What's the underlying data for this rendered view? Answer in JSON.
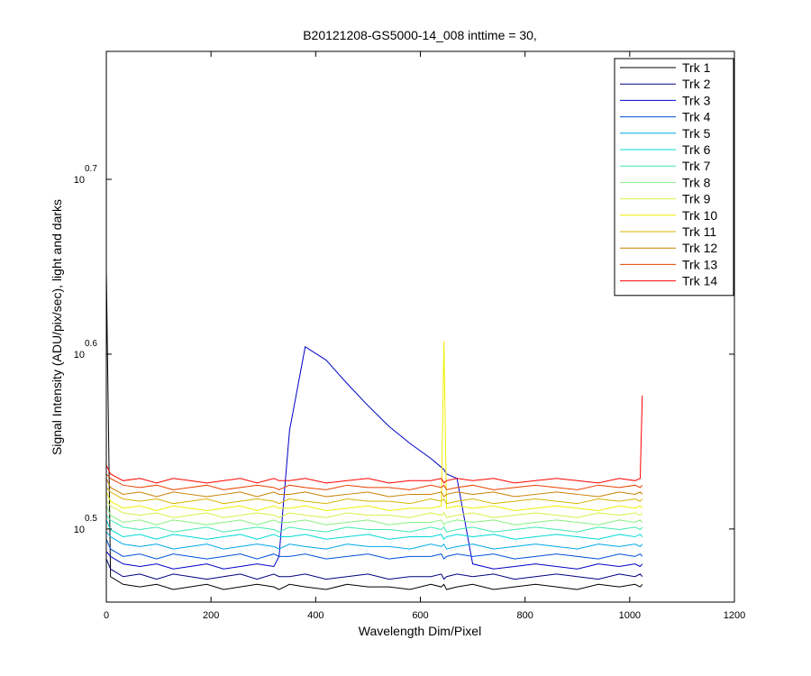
{
  "chart_data": {
    "type": "line",
    "title": "B20121208-GS5000-14_008 inttime = 30,",
    "x_label": "Wavelength Dim/Pixel",
    "y_label": "Signal Intensity (ADU/pix/sec), light and darks",
    "log_y": true,
    "legend_position": "northeast",
    "xlim": [
      0,
      1200
    ],
    "xticks": [
      0,
      200,
      400,
      600,
      800,
      1000,
      1200
    ],
    "ylim": [
      2.872,
      5.932
    ],
    "yticks": [
      {
        "value": 3.16228,
        "label": "10",
        "exponent": "0.5"
      },
      {
        "value": 3.98107,
        "label": "10",
        "exponent": "0.6"
      },
      {
        "value": 5.01187,
        "label": "10",
        "exponent": "0.7"
      }
    ],
    "x": [
      0,
      8,
      32,
      64,
      96,
      128,
      160,
      192,
      224,
      256,
      288,
      320,
      330,
      350,
      380,
      420,
      460,
      500,
      540,
      580,
      620,
      640,
      645,
      650,
      670,
      700,
      740,
      780,
      820,
      860,
      900,
      940,
      980,
      1010,
      1020,
      1024
    ],
    "series": [
      {
        "name": "Trk 1",
        "color": "#000000",
        "values": [
          4.45,
          2.97,
          2.94,
          2.93,
          2.94,
          2.92,
          2.93,
          2.94,
          2.92,
          2.93,
          2.94,
          2.93,
          2.92,
          2.94,
          2.93,
          2.92,
          2.94,
          2.93,
          2.93,
          2.92,
          2.94,
          2.93,
          2.94,
          2.92,
          2.93,
          2.94,
          2.92,
          2.93,
          2.94,
          2.93,
          2.92,
          2.94,
          2.93,
          2.94,
          2.93,
          2.94
        ]
      },
      {
        "name": "Trk 2",
        "color": "#00007f",
        "values": [
          3.04,
          3.0,
          2.97,
          2.98,
          2.96,
          2.98,
          2.97,
          2.96,
          2.97,
          2.98,
          2.96,
          2.98,
          2.97,
          2.97,
          2.98,
          2.96,
          2.97,
          2.98,
          2.96,
          2.97,
          2.97,
          2.98,
          2.96,
          2.97,
          2.98,
          2.97,
          2.98,
          2.96,
          2.97,
          2.98,
          2.97,
          2.96,
          2.98,
          2.97,
          2.98,
          2.97
        ]
      },
      {
        "name": "Trk 3",
        "color": "#0000c8",
        "values": [
          3.07,
          3.05,
          3.02,
          3.01,
          3.02,
          3.0,
          3.01,
          3.02,
          3.0,
          3.01,
          3.02,
          3.01,
          3.05,
          3.6,
          4.02,
          3.95,
          3.83,
          3.72,
          3.62,
          3.54,
          3.47,
          3.43,
          3.42,
          3.4,
          3.38,
          3.02,
          3.0,
          3.01,
          3.02,
          3.01,
          3.0,
          3.02,
          3.01,
          3.02,
          3.01,
          3.02
        ]
      },
      {
        "name": "Trk 4",
        "color": "#0050dc",
        "values": [
          3.12,
          3.08,
          3.05,
          3.06,
          3.04,
          3.06,
          3.05,
          3.04,
          3.05,
          3.06,
          3.04,
          3.06,
          3.05,
          3.05,
          3.06,
          3.04,
          3.05,
          3.06,
          3.04,
          3.05,
          3.05,
          3.06,
          3.04,
          3.05,
          3.06,
          3.05,
          3.06,
          3.04,
          3.05,
          3.06,
          3.05,
          3.04,
          3.06,
          3.05,
          3.06,
          3.05
        ]
      },
      {
        "name": "Trk 5",
        "color": "#00a8e8",
        "values": [
          3.15,
          3.13,
          3.1,
          3.09,
          3.1,
          3.08,
          3.09,
          3.1,
          3.08,
          3.09,
          3.1,
          3.09,
          3.08,
          3.1,
          3.09,
          3.08,
          3.1,
          3.09,
          3.09,
          3.08,
          3.1,
          3.09,
          3.1,
          3.08,
          3.09,
          3.1,
          3.08,
          3.09,
          3.1,
          3.09,
          3.08,
          3.1,
          3.09,
          3.1,
          3.09,
          3.1
        ]
      },
      {
        "name": "Trk 6",
        "color": "#00d8d8",
        "values": [
          3.2,
          3.16,
          3.13,
          3.14,
          3.12,
          3.14,
          3.13,
          3.12,
          3.13,
          3.14,
          3.12,
          3.14,
          3.13,
          3.13,
          3.14,
          3.12,
          3.13,
          3.14,
          3.12,
          3.13,
          3.13,
          3.14,
          3.12,
          3.13,
          3.14,
          3.13,
          3.14,
          3.12,
          3.13,
          3.14,
          3.13,
          3.12,
          3.14,
          3.13,
          3.14,
          3.13
        ]
      },
      {
        "name": "Trk 7",
        "color": "#40e8b0",
        "values": [
          3.22,
          3.2,
          3.17,
          3.16,
          3.17,
          3.15,
          3.16,
          3.17,
          3.15,
          3.16,
          3.17,
          3.16,
          3.15,
          3.17,
          3.16,
          3.15,
          3.17,
          3.16,
          3.16,
          3.15,
          3.17,
          3.16,
          3.17,
          3.15,
          3.16,
          3.17,
          3.15,
          3.16,
          3.17,
          3.16,
          3.15,
          3.17,
          3.16,
          3.17,
          3.16,
          3.17
        ]
      },
      {
        "name": "Trk 8",
        "color": "#88f080",
        "values": [
          3.26,
          3.22,
          3.19,
          3.2,
          3.18,
          3.2,
          3.19,
          3.18,
          3.19,
          3.2,
          3.18,
          3.2,
          3.19,
          3.19,
          3.2,
          3.18,
          3.19,
          3.2,
          3.18,
          3.19,
          3.19,
          3.2,
          3.18,
          3.19,
          3.2,
          3.19,
          3.2,
          3.18,
          3.19,
          3.2,
          3.19,
          3.18,
          3.2,
          3.19,
          3.2,
          3.19
        ]
      },
      {
        "name": "Trk 9",
        "color": "#d8f048",
        "values": [
          3.28,
          3.26,
          3.23,
          3.22,
          3.23,
          3.21,
          3.22,
          3.23,
          3.21,
          3.22,
          3.23,
          3.22,
          3.21,
          3.23,
          3.22,
          3.21,
          3.23,
          3.22,
          3.22,
          3.21,
          3.23,
          3.22,
          3.23,
          3.21,
          3.22,
          3.23,
          3.21,
          3.22,
          3.23,
          3.22,
          3.21,
          3.23,
          3.22,
          3.23,
          3.22,
          3.23
        ]
      },
      {
        "name": "Trk 10",
        "color": "#f0f000",
        "values": [
          3.32,
          3.28,
          3.25,
          3.26,
          3.24,
          3.26,
          3.25,
          3.24,
          3.25,
          3.26,
          3.24,
          3.26,
          3.25,
          3.25,
          3.26,
          3.24,
          3.25,
          3.26,
          3.24,
          3.25,
          3.25,
          3.26,
          4.05,
          3.25,
          3.26,
          3.25,
          3.26,
          3.24,
          3.25,
          3.26,
          3.25,
          3.24,
          3.26,
          3.25,
          3.26,
          3.25
        ]
      },
      {
        "name": "Trk 11",
        "color": "#d8b400",
        "values": [
          3.34,
          3.32,
          3.29,
          3.28,
          3.29,
          3.27,
          3.28,
          3.29,
          3.27,
          3.28,
          3.29,
          3.28,
          3.27,
          3.29,
          3.28,
          3.27,
          3.29,
          3.28,
          3.28,
          3.27,
          3.29,
          3.28,
          3.29,
          3.27,
          3.28,
          3.29,
          3.27,
          3.28,
          3.29,
          3.28,
          3.27,
          3.29,
          3.28,
          3.29,
          3.28,
          3.29
        ]
      },
      {
        "name": "Trk 12",
        "color": "#c88000",
        "values": [
          3.38,
          3.34,
          3.31,
          3.32,
          3.3,
          3.32,
          3.31,
          3.3,
          3.31,
          3.32,
          3.3,
          3.32,
          3.31,
          3.31,
          3.32,
          3.3,
          3.31,
          3.32,
          3.3,
          3.31,
          3.31,
          3.32,
          3.3,
          3.31,
          3.32,
          3.31,
          3.32,
          3.3,
          3.31,
          3.32,
          3.31,
          3.3,
          3.32,
          3.31,
          3.32,
          3.31
        ]
      },
      {
        "name": "Trk 13",
        "color": "#e84000",
        "values": [
          3.4,
          3.38,
          3.35,
          3.34,
          3.35,
          3.33,
          3.34,
          3.35,
          3.33,
          3.34,
          3.35,
          3.34,
          3.33,
          3.35,
          3.34,
          3.33,
          3.35,
          3.34,
          3.34,
          3.33,
          3.35,
          3.34,
          3.35,
          3.33,
          3.34,
          3.35,
          3.33,
          3.34,
          3.35,
          3.34,
          3.33,
          3.35,
          3.34,
          3.35,
          3.34,
          3.35
        ]
      },
      {
        "name": "Trk 14",
        "color": "#ff0000",
        "values": [
          3.44,
          3.4,
          3.37,
          3.38,
          3.36,
          3.38,
          3.37,
          3.36,
          3.37,
          3.38,
          3.36,
          3.38,
          3.37,
          3.37,
          3.38,
          3.36,
          3.37,
          3.38,
          3.36,
          3.37,
          3.37,
          3.38,
          3.36,
          3.37,
          3.38,
          3.37,
          3.38,
          3.36,
          3.37,
          3.38,
          3.37,
          3.36,
          3.38,
          3.37,
          3.38,
          3.77
        ]
      }
    ]
  }
}
